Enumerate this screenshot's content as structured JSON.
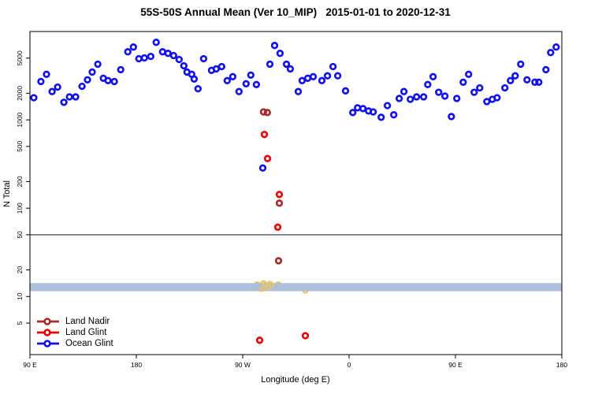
{
  "title": "55S-50S Annual Mean (Ver 10_MIP)   2015-01-01 to 2020-12-31",
  "legend": {
    "items": [
      {
        "label": "Land Nadir",
        "color": "#A52A2A"
      },
      {
        "label": "Land Glint",
        "color": "#EE0000"
      },
      {
        "label": "Ocean Glint",
        "color": "#1111EE"
      }
    ]
  },
  "chart_data": {
    "type": "scatter",
    "title": "55S-50S Annual Mean (Ver 10_MIP)   2015-01-01 to 2020-12-31",
    "xlabel": "Longitude (deg E)",
    "ylabel": "N Total",
    "y_scale": "log",
    "ylim": [
      2.2,
      10000
    ],
    "yticks": [
      5,
      10,
      20,
      50,
      100,
      200,
      500,
      1000,
      2000,
      5000
    ],
    "xlim": [
      90,
      540
    ],
    "xticks": {
      "values": [
        90,
        180,
        270,
        360,
        450,
        540
      ],
      "labels": [
        "90 E",
        "180",
        "90 W",
        "0",
        "90 E",
        "180"
      ]
    },
    "reference_line": {
      "y": 50,
      "color": "#808080"
    },
    "band": {
      "y_from": 11.5,
      "y_to": 14.2,
      "color": "#A9BEDB",
      "opacity": 0.95
    },
    "series": [
      {
        "name": "Ocean Glint",
        "color": "#1111EE",
        "points": [
          [
            93.3,
            1780
          ],
          [
            99.3,
            2720
          ],
          [
            104.0,
            3280
          ],
          [
            108.7,
            2090
          ],
          [
            113.4,
            2350
          ],
          [
            118.7,
            1580
          ],
          [
            123.4,
            1820
          ],
          [
            128.7,
            1820
          ],
          [
            134.1,
            2400
          ],
          [
            138.7,
            2840
          ],
          [
            142.7,
            3480
          ],
          [
            147.4,
            4270
          ],
          [
            152.1,
            2960
          ],
          [
            156.1,
            2780
          ],
          [
            161.4,
            2720
          ],
          [
            166.8,
            3700
          ],
          [
            172.8,
            5900
          ],
          [
            177.5,
            6670
          ],
          [
            182.1,
            4920
          ],
          [
            186.8,
            5020
          ],
          [
            192.2,
            5230
          ],
          [
            196.8,
            7540
          ],
          [
            202.2,
            5900
          ],
          [
            206.8,
            5660
          ],
          [
            211.5,
            5350
          ],
          [
            216.2,
            4820
          ],
          [
            220.2,
            4090
          ],
          [
            222.9,
            3480
          ],
          [
            226.9,
            3280
          ],
          [
            228.9,
            2900
          ],
          [
            232.2,
            2250
          ],
          [
            236.9,
            4920
          ],
          [
            243.6,
            3630
          ],
          [
            247.6,
            3780
          ],
          [
            252.2,
            4010
          ],
          [
            256.9,
            2780
          ],
          [
            261.6,
            3080
          ],
          [
            266.9,
            2090
          ],
          [
            272.9,
            2560
          ],
          [
            276.9,
            3210
          ],
          [
            281.6,
            2510
          ],
          [
            287.0,
            285
          ],
          [
            293.0,
            4270
          ],
          [
            297.0,
            6950
          ],
          [
            301.6,
            5660
          ],
          [
            307.0,
            4270
          ],
          [
            310.3,
            3780
          ],
          [
            317.0,
            2090
          ],
          [
            320.3,
            2780
          ],
          [
            325.0,
            2960
          ],
          [
            329.7,
            3080
          ],
          [
            337.0,
            2780
          ],
          [
            341.7,
            3150
          ],
          [
            346.4,
            4010
          ],
          [
            350.4,
            3150
          ],
          [
            357.0,
            2130
          ],
          [
            363.1,
            1210
          ],
          [
            367.1,
            1370
          ],
          [
            371.7,
            1340
          ],
          [
            376.4,
            1260
          ],
          [
            380.4,
            1230
          ],
          [
            387.1,
            1070
          ],
          [
            392.4,
            1450
          ],
          [
            397.8,
            1140
          ],
          [
            402.4,
            1750
          ],
          [
            406.4,
            2090
          ],
          [
            411.8,
            1710
          ],
          [
            417.1,
            1820
          ],
          [
            423.1,
            1820
          ],
          [
            426.5,
            2510
          ],
          [
            431.1,
            3080
          ],
          [
            435.8,
            2050
          ],
          [
            441.1,
            1860
          ],
          [
            446.5,
            1090
          ],
          [
            451.1,
            1750
          ],
          [
            456.5,
            2670
          ],
          [
            461.1,
            3280
          ],
          [
            465.8,
            2050
          ],
          [
            470.5,
            2300
          ],
          [
            476.5,
            1610
          ],
          [
            481.2,
            1710
          ],
          [
            485.2,
            1780
          ],
          [
            491.8,
            2300
          ],
          [
            496.5,
            2780
          ],
          [
            500.5,
            3150
          ],
          [
            505.2,
            4270
          ],
          [
            510.5,
            2840
          ],
          [
            517.2,
            2670
          ],
          [
            520.5,
            2670
          ],
          [
            526.5,
            3700
          ],
          [
            530.5,
            5780
          ],
          [
            535.2,
            6670
          ]
        ]
      },
      {
        "name": "Land Nadir",
        "color": "#A52A2A",
        "points": [
          [
            287.6,
            1230
          ],
          [
            290.9,
            1210
          ],
          [
            301.0,
            114
          ],
          [
            300.3,
            25.4
          ]
        ]
      },
      {
        "name": "Land Glint",
        "color": "#EE0000",
        "points": [
          [
            288.3,
            684
          ],
          [
            291.0,
            365
          ],
          [
            301.0,
            143
          ],
          [
            299.7,
            61
          ],
          [
            284.3,
            3.2
          ],
          [
            323.0,
            3.6
          ]
        ]
      },
      {
        "name": "Gold (unlabeled)",
        "color": "#EDC45E",
        "points": [
          [
            282.3,
            13.6
          ],
          [
            285.0,
            12.4
          ],
          [
            287.6,
            14.0
          ],
          [
            290.3,
            12.8
          ],
          [
            293.0,
            13.8
          ],
          [
            300.0,
            13.6
          ],
          [
            323.0,
            11.8
          ]
        ]
      }
    ]
  }
}
